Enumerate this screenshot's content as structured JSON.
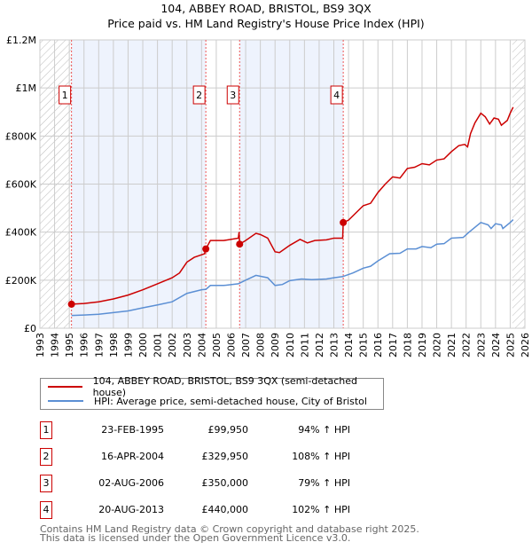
{
  "chart_data": {
    "type": "line",
    "title": "104, ABBEY ROAD, BRISTOL, BS9 3QX",
    "subtitle": "Price paid vs. HM Land Registry's House Price Index (HPI)",
    "xlim": [
      1993,
      2026
    ],
    "ylim": [
      0,
      1200000
    ],
    "yticks": [
      {
        "v": 0,
        "label": "£0"
      },
      {
        "v": 200000,
        "label": "£200K"
      },
      {
        "v": 400000,
        "label": "£400K"
      },
      {
        "v": 600000,
        "label": "£600K"
      },
      {
        "v": 800000,
        "label": "£800K"
      },
      {
        "v": 1000000,
        "label": "£1M"
      },
      {
        "v": 1200000,
        "label": "£1.2M"
      }
    ],
    "xticks": [
      "1993",
      "1994",
      "1995",
      "1996",
      "1997",
      "1998",
      "1999",
      "2000",
      "2001",
      "2002",
      "2003",
      "2004",
      "2005",
      "2006",
      "2007",
      "2008",
      "2009",
      "2010",
      "2011",
      "2012",
      "2013",
      "2014",
      "2015",
      "2016",
      "2017",
      "2018",
      "2019",
      "2020",
      "2021",
      "2022",
      "2023",
      "2024",
      "2025",
      "2026"
    ],
    "grid": true,
    "hatched_ranges": [
      [
        1993,
        1995.15
      ],
      [
        2025.15,
        2026
      ]
    ],
    "shaded_ranges": [
      [
        1995.15,
        2004.29
      ],
      [
        2006.59,
        2013.64
      ]
    ],
    "series": [
      {
        "name": "104, ABBEY ROAD, BRISTOL, BS9 3QX (semi-detached house)",
        "color": "#cc0000",
        "points": [
          [
            1995.15,
            100
          ],
          [
            1996,
            103
          ],
          [
            1997,
            110
          ],
          [
            1998,
            122
          ],
          [
            1999,
            138
          ],
          [
            2000,
            160
          ],
          [
            2001,
            185
          ],
          [
            2002,
            210
          ],
          [
            2002.5,
            230
          ],
          [
            2003,
            275
          ],
          [
            2003.5,
            295
          ],
          [
            2004.2,
            310
          ],
          [
            2004.29,
            330
          ],
          [
            2004.6,
            365
          ],
          [
            2005.5,
            365
          ],
          [
            2006.5,
            375
          ],
          [
            2006.55,
            400
          ],
          [
            2006.59,
            350
          ],
          [
            2007,
            365
          ],
          [
            2007.7,
            395
          ],
          [
            2008,
            390
          ],
          [
            2008.5,
            375
          ],
          [
            2009,
            318
          ],
          [
            2009.3,
            315
          ],
          [
            2010,
            345
          ],
          [
            2010.7,
            370
          ],
          [
            2011.2,
            355
          ],
          [
            2011.7,
            365
          ],
          [
            2012.5,
            368
          ],
          [
            2013,
            375
          ],
          [
            2013.6,
            375
          ],
          [
            2013.64,
            440
          ],
          [
            2014,
            450
          ],
          [
            2014.5,
            480
          ],
          [
            2015,
            510
          ],
          [
            2015.5,
            520
          ],
          [
            2016,
            565
          ],
          [
            2016.5,
            600
          ],
          [
            2017,
            630
          ],
          [
            2017.5,
            625
          ],
          [
            2018,
            665
          ],
          [
            2018.5,
            670
          ],
          [
            2019,
            685
          ],
          [
            2019.5,
            680
          ],
          [
            2020,
            700
          ],
          [
            2020.5,
            705
          ],
          [
            2021,
            735
          ],
          [
            2021.5,
            760
          ],
          [
            2021.9,
            765
          ],
          [
            2022.1,
            755
          ],
          [
            2022.3,
            810
          ],
          [
            2022.6,
            855
          ],
          [
            2023,
            895
          ],
          [
            2023.3,
            880
          ],
          [
            2023.6,
            850
          ],
          [
            2023.9,
            875
          ],
          [
            2024.2,
            870
          ],
          [
            2024.4,
            845
          ],
          [
            2024.8,
            865
          ],
          [
            2025,
            895
          ],
          [
            2025.2,
            920
          ]
        ]
      },
      {
        "name": "HPI: Average price, semi-detached house, City of Bristol",
        "color": "#5b8fd4",
        "points": [
          [
            1995.15,
            53
          ],
          [
            1996,
            55
          ],
          [
            1997,
            58
          ],
          [
            1998,
            65
          ],
          [
            1999,
            72
          ],
          [
            2000,
            85
          ],
          [
            2001,
            97
          ],
          [
            2002,
            110
          ],
          [
            2003,
            145
          ],
          [
            2004,
            160
          ],
          [
            2004.3,
            162
          ],
          [
            2004.6,
            178
          ],
          [
            2005.5,
            178
          ],
          [
            2006.5,
            185
          ],
          [
            2007,
            200
          ],
          [
            2007.7,
            220
          ],
          [
            2008.5,
            210
          ],
          [
            2009,
            178
          ],
          [
            2009.5,
            182
          ],
          [
            2010,
            198
          ],
          [
            2010.8,
            205
          ],
          [
            2011.5,
            202
          ],
          [
            2012.5,
            205
          ],
          [
            2013,
            210
          ],
          [
            2013.6,
            215
          ],
          [
            2014.3,
            230
          ],
          [
            2015,
            250
          ],
          [
            2015.5,
            258
          ],
          [
            2016,
            280
          ],
          [
            2016.8,
            310
          ],
          [
            2017.5,
            312
          ],
          [
            2018,
            330
          ],
          [
            2018.6,
            330
          ],
          [
            2019,
            340
          ],
          [
            2019.6,
            335
          ],
          [
            2020,
            350
          ],
          [
            2020.5,
            352
          ],
          [
            2021,
            375
          ],
          [
            2021.8,
            378
          ],
          [
            2022.2,
            400
          ],
          [
            2023,
            440
          ],
          [
            2023.5,
            430
          ],
          [
            2023.7,
            415
          ],
          [
            2024,
            435
          ],
          [
            2024.4,
            430
          ],
          [
            2024.5,
            415
          ],
          [
            2025,
            440
          ],
          [
            2025.2,
            452
          ]
        ]
      }
    ],
    "sales": [
      {
        "id": "1",
        "x": 1995.15,
        "y": 99950
      },
      {
        "id": "2",
        "x": 2004.29,
        "y": 329950
      },
      {
        "id": "3",
        "x": 2006.59,
        "y": 350000
      },
      {
        "id": "4",
        "x": 2013.64,
        "y": 440000
      }
    ]
  },
  "table": [
    {
      "id": "1",
      "date": "23-FEB-1995",
      "price": "£99,950",
      "hpi": "94% ↑ HPI"
    },
    {
      "id": "2",
      "date": "16-APR-2004",
      "price": "£329,950",
      "hpi": "108% ↑ HPI"
    },
    {
      "id": "3",
      "date": "02-AUG-2006",
      "price": "£350,000",
      "hpi": "79% ↑ HPI"
    },
    {
      "id": "4",
      "date": "20-AUG-2013",
      "price": "£440,000",
      "hpi": "102% ↑ HPI"
    }
  ],
  "footer": {
    "line1": "Contains HM Land Registry data © Crown copyright and database right 2025.",
    "line2": "This data is licensed under the Open Government Licence v3.0."
  }
}
